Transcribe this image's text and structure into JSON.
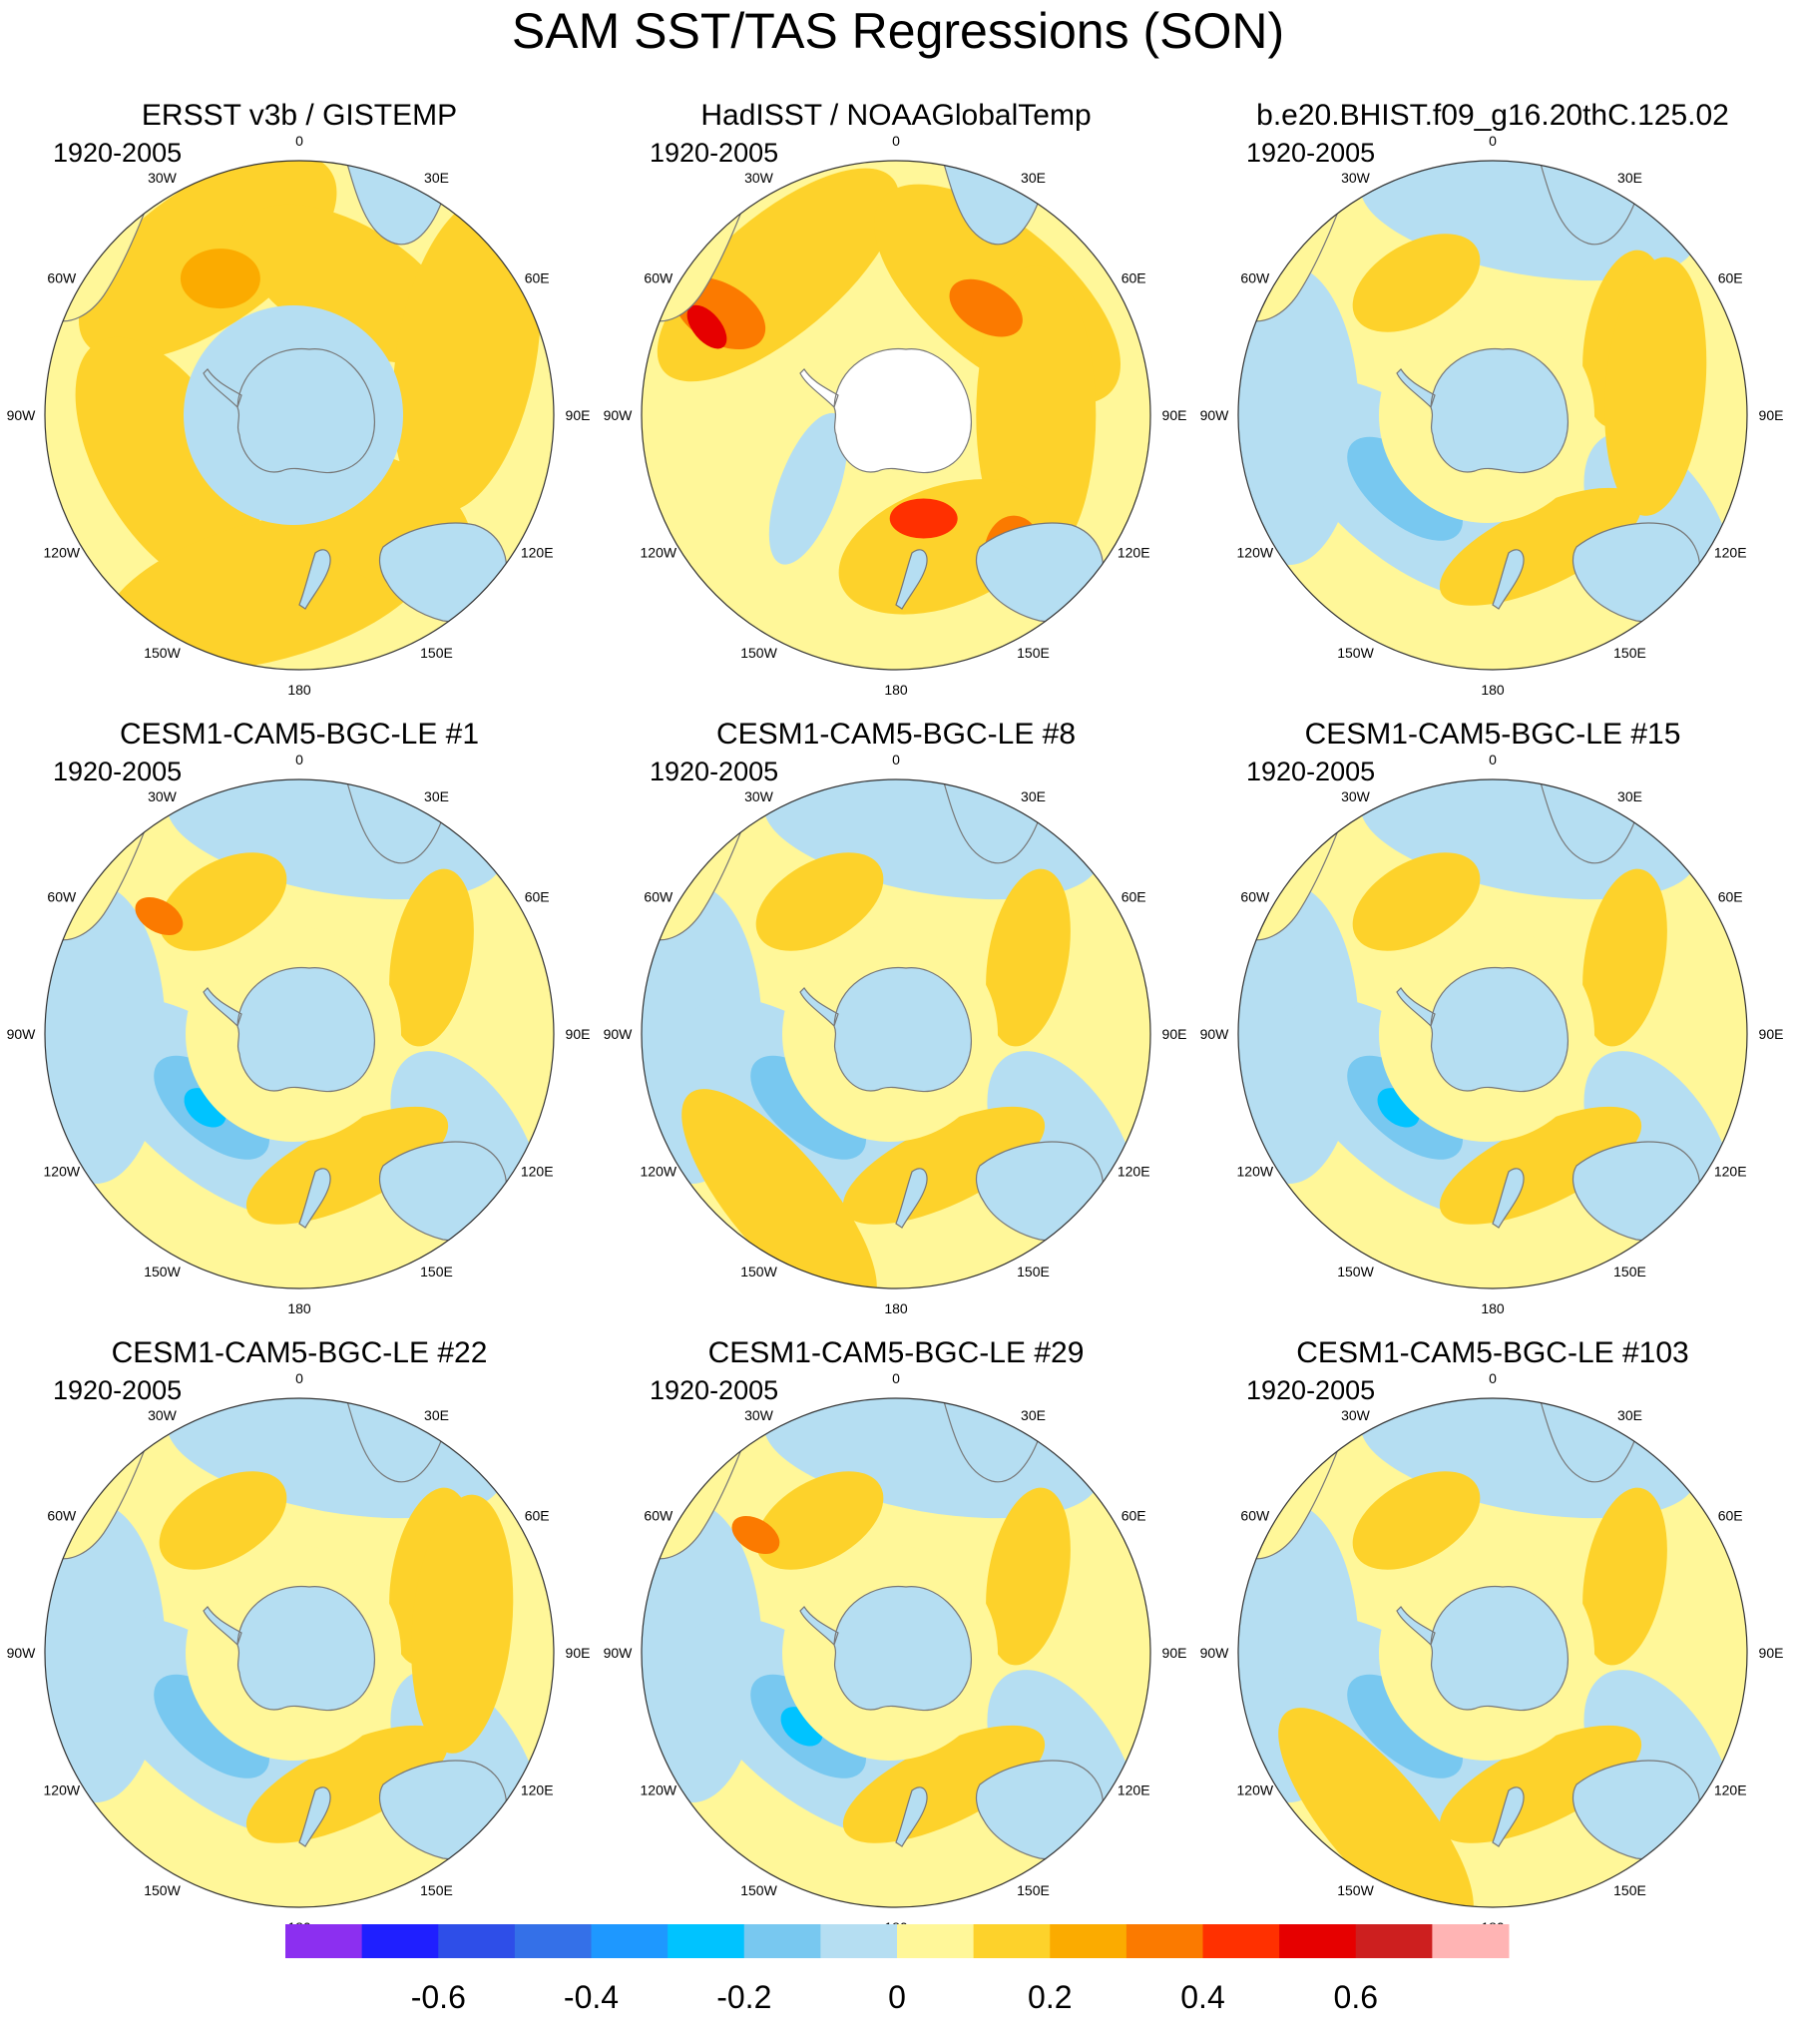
{
  "title": "SAM SST/TAS Regressions (SON)",
  "lon_labels": [
    "0",
    "30E",
    "60E",
    "90E",
    "120E",
    "150E",
    "180",
    "150W",
    "120W",
    "90W",
    "60W",
    "30W"
  ],
  "panels": [
    {
      "title": "ERSST v3b / GISTEMP",
      "period": "1920-2005",
      "style": "obs_a"
    },
    {
      "title": "HadISST / NOAAGlobalTemp",
      "period": "1920-2005",
      "style": "obs_b"
    },
    {
      "title": "b.e20.BHIST.f09_g16.20thC.125.02",
      "period": "1920-2005",
      "style": "model"
    },
    {
      "title": "CESM1-CAM5-BGC-LE #1",
      "period": "1920-2005",
      "style": "model"
    },
    {
      "title": "CESM1-CAM5-BGC-LE #8",
      "period": "1920-2005",
      "style": "model"
    },
    {
      "title": "CESM1-CAM5-BGC-LE #15",
      "period": "1920-2005",
      "style": "model"
    },
    {
      "title": "CESM1-CAM5-BGC-LE #22",
      "period": "1920-2005",
      "style": "model"
    },
    {
      "title": "CESM1-CAM5-BGC-LE #29",
      "period": "1920-2005",
      "style": "model"
    },
    {
      "title": "CESM1-CAM5-BGC-LE #103",
      "period": "1920-2005",
      "style": "model"
    }
  ],
  "colorbar": {
    "colors": [
      "#8c2ff0",
      "#1f1fff",
      "#2e4ee8",
      "#3470e8",
      "#1e98ff",
      "#00c3ff",
      "#78c8f0",
      "#b5def2",
      "#fff799",
      "#fdd22b",
      "#fbab00",
      "#fb7a00",
      "#ff3000",
      "#e60000",
      "#cd1f1f",
      "#ffb4b4"
    ],
    "tick_labels": [
      "-0.6",
      "-0.4",
      "-0.2",
      "0",
      "0.2",
      "0.4",
      "0.6"
    ]
  },
  "palette": {
    "neg_light": "#b5def2",
    "neg_mid": "#78c8f0",
    "neg_strong": "#00c3ff",
    "zero_pos": "#fff799",
    "pos_1": "#fdd22b",
    "pos_2": "#fbab00",
    "pos_3": "#fb7a00",
    "pos_4": "#ff3000",
    "pos_5": "#e60000",
    "missing": "#ffffff"
  }
}
